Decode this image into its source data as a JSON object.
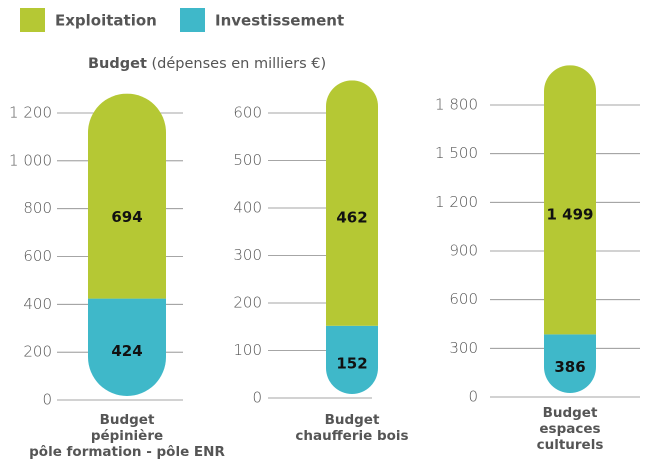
{
  "subtitle": {
    "label": "Budget",
    "note": "(dépenses en milliers €)"
  },
  "chart_data": [
    {
      "type": "bar",
      "stacked": true,
      "categories": [
        "Budget\npépinière\npôle formation - pôle ENR"
      ],
      "series": [
        {
          "name": "Investissement",
          "color": "#3fb8c9",
          "values": [
            424
          ]
        },
        {
          "name": "Exploitation",
          "color": "#b5c834",
          "values": [
            694
          ]
        }
      ],
      "ylim": [
        0,
        1200
      ],
      "yticks": [
        0,
        200,
        400,
        600,
        800,
        {
          "value": 1000,
          "label": "1 000"
        },
        {
          "value": 1200,
          "label": "1 200"
        }
      ]
    },
    {
      "type": "bar",
      "stacked": true,
      "categories": [
        "Budget\nchaufferie bois"
      ],
      "series": [
        {
          "name": "Investissement",
          "color": "#3fb8c9",
          "values": [
            152
          ]
        },
        {
          "name": "Exploitation",
          "color": "#b5c834",
          "values": [
            462
          ]
        }
      ],
      "ylim": [
        0,
        600
      ],
      "yticks": [
        0,
        100,
        200,
        300,
        400,
        500,
        600
      ]
    },
    {
      "type": "bar",
      "stacked": true,
      "categories": [
        "Budget\nespaces culturels"
      ],
      "series": [
        {
          "name": "Investissement",
          "color": "#3fb8c9",
          "values": [
            386
          ]
        },
        {
          "name": "Exploitation",
          "color": "#b5c834",
          "values": [
            1499
          ],
          "value_labels": [
            "1 499"
          ]
        }
      ],
      "ylim": [
        0,
        1800
      ],
      "yticks": [
        0,
        300,
        600,
        900,
        {
          "value": 1200,
          "label": "1 200"
        },
        {
          "value": 1500,
          "label": "1 500"
        },
        {
          "value": 1800,
          "label": "1 800"
        }
      ]
    }
  ]
}
